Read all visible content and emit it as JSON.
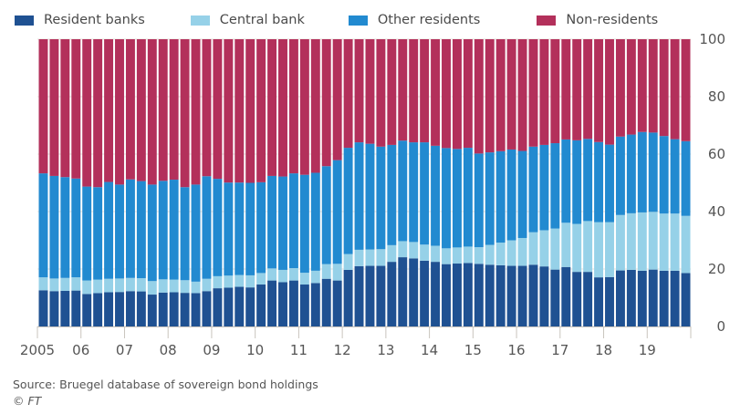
{
  "legend": [
    {
      "label": "Resident banks",
      "color": "#1f5192"
    },
    {
      "label": "Central bank",
      "color": "#96d1e8"
    },
    {
      "label": "Other residents",
      "color": "#228ad0"
    },
    {
      "label": "Non-residents",
      "color": "#b3305b"
    }
  ],
  "footer": {
    "source": "Source: Bruegel database of sovereign bond holdings",
    "copyright": "© FT"
  },
  "chart_data": {
    "type": "bar",
    "stacked": true,
    "title": "",
    "xlabel": "",
    "ylabel": "",
    "ylim": [
      0,
      100
    ],
    "yticks": [
      0,
      20,
      40,
      60,
      80,
      100
    ],
    "y_axis_side": "right",
    "grid": true,
    "legend_position": "top",
    "x_tick_labels": [
      "2005",
      "06",
      "07",
      "08",
      "09",
      "10",
      "11",
      "12",
      "13",
      "14",
      "15",
      "16",
      "17",
      "18",
      "19"
    ],
    "frequency": "quarterly",
    "categories": [
      "2005Q1",
      "2005Q2",
      "2005Q3",
      "2005Q4",
      "2006Q1",
      "2006Q2",
      "2006Q3",
      "2006Q4",
      "2007Q1",
      "2007Q2",
      "2007Q3",
      "2007Q4",
      "2008Q1",
      "2008Q2",
      "2008Q3",
      "2008Q4",
      "2009Q1",
      "2009Q2",
      "2009Q3",
      "2009Q4",
      "2010Q1",
      "2010Q2",
      "2010Q3",
      "2010Q4",
      "2011Q1",
      "2011Q2",
      "2011Q3",
      "2011Q4",
      "2012Q1",
      "2012Q2",
      "2012Q3",
      "2012Q4",
      "2013Q1",
      "2013Q2",
      "2013Q3",
      "2013Q4",
      "2014Q1",
      "2014Q2",
      "2014Q3",
      "2014Q4",
      "2015Q1",
      "2015Q2",
      "2015Q3",
      "2015Q4",
      "2016Q1",
      "2016Q2",
      "2016Q3",
      "2016Q4",
      "2017Q1",
      "2017Q2",
      "2017Q3",
      "2017Q4",
      "2018Q1",
      "2018Q2",
      "2018Q3",
      "2018Q4",
      "2019Q1",
      "2019Q2",
      "2019Q3",
      "2019Q4"
    ],
    "series": [
      {
        "name": "Resident banks",
        "color": "#1f5192",
        "values": [
          12.6,
          12.3,
          12.4,
          12.5,
          11.3,
          11.6,
          11.9,
          12.0,
          12.3,
          12.2,
          11.1,
          11.8,
          11.9,
          11.7,
          11.6,
          12.3,
          13.3,
          13.5,
          13.8,
          13.6,
          14.6,
          16.0,
          15.4,
          16.0,
          14.6,
          15.1,
          16.6,
          16.0,
          19.7,
          21.0,
          21.1,
          21.1,
          22.5,
          24.1,
          23.7,
          22.9,
          22.5,
          21.7,
          21.9,
          22.1,
          21.8,
          21.5,
          21.3,
          21.1,
          21.1,
          21.5,
          20.9,
          19.8,
          20.7,
          19.0,
          19.0,
          17.1,
          17.2,
          19.5,
          19.7,
          19.4,
          19.8,
          19.4,
          19.4,
          18.6
        ]
      },
      {
        "name": "Central bank",
        "color": "#96d1e8",
        "values": [
          4.5,
          4.4,
          4.5,
          4.6,
          4.7,
          4.7,
          4.7,
          4.7,
          4.6,
          4.6,
          4.7,
          4.6,
          4.4,
          4.4,
          4.0,
          4.3,
          4.2,
          4.2,
          4.1,
          4.2,
          4.0,
          4.2,
          4.3,
          4.3,
          4.1,
          4.3,
          5.1,
          5.8,
          5.5,
          5.7,
          5.7,
          5.8,
          5.8,
          5.6,
          5.7,
          5.6,
          5.6,
          5.5,
          5.6,
          5.7,
          5.8,
          6.9,
          7.9,
          8.9,
          9.7,
          11.3,
          12.6,
          14.3,
          15.4,
          16.7,
          17.7,
          19.2,
          19.1,
          19.3,
          19.7,
          20.3,
          20.1,
          19.9,
          19.9,
          19.9
        ]
      },
      {
        "name": "Other residents",
        "color": "#228ad0",
        "values": [
          36.2,
          35.7,
          35.1,
          34.4,
          32.7,
          32.2,
          33.7,
          32.7,
          34.3,
          33.8,
          33.6,
          34.3,
          34.8,
          32.4,
          33.8,
          35.7,
          33.9,
          32.4,
          32.2,
          32.2,
          31.6,
          32.2,
          32.5,
          33.0,
          34.1,
          34.1,
          34.1,
          36.1,
          37.0,
          37.4,
          36.8,
          35.7,
          34.9,
          35.0,
          34.7,
          35.6,
          34.8,
          34.9,
          34.3,
          34.4,
          32.6,
          32.2,
          31.8,
          31.6,
          30.3,
          29.8,
          29.7,
          29.7,
          29.0,
          29.1,
          28.6,
          27.9,
          27.0,
          27.3,
          27.4,
          28.0,
          27.6,
          27.0,
          25.9,
          26.0
        ]
      },
      {
        "name": "Non-residents",
        "color": "#b3305b",
        "values": [
          46.7,
          47.6,
          48.0,
          48.5,
          51.3,
          51.5,
          49.7,
          50.6,
          48.8,
          49.4,
          50.6,
          49.3,
          48.9,
          51.5,
          50.6,
          47.7,
          48.6,
          49.9,
          49.9,
          50.0,
          49.8,
          47.6,
          47.8,
          46.7,
          47.2,
          46.5,
          44.2,
          42.1,
          37.8,
          35.9,
          36.4,
          37.4,
          36.8,
          35.3,
          35.9,
          35.9,
          37.1,
          37.9,
          38.2,
          37.8,
          39.8,
          39.4,
          39.0,
          38.4,
          38.9,
          37.4,
          36.8,
          36.2,
          34.9,
          35.2,
          34.7,
          35.8,
          36.7,
          33.9,
          33.2,
          32.3,
          32.5,
          33.7,
          34.8,
          35.5
        ]
      }
    ]
  }
}
